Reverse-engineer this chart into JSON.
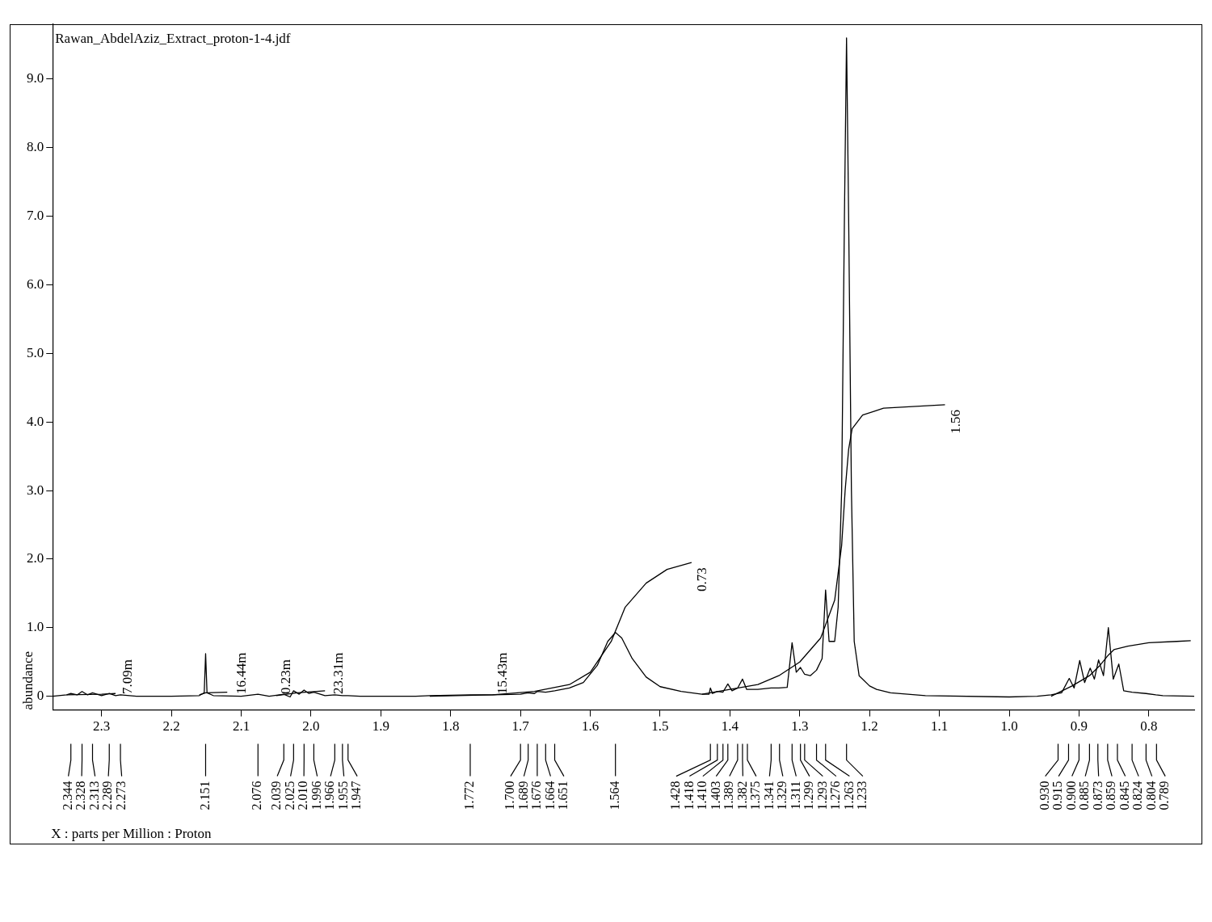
{
  "chart_data": {
    "type": "line",
    "title": "Rawan_AbdelAziz_Extract_proton-1-4.jdf",
    "ylabel": "abundance",
    "xlim": [
      2.37,
      0.735
    ],
    "ylim": [
      -0.2,
      9.8
    ],
    "xticks": [
      2.3,
      2.2,
      2.1,
      {
        "value": 2.0,
        "label": "2.0"
      },
      1.9,
      1.8,
      1.7,
      1.6,
      1.5,
      1.4,
      1.3,
      1.2,
      1.1,
      {
        "value": 1.0,
        "label": "1.0"
      },
      0.9,
      0.8
    ],
    "yticks": [
      0,
      {
        "value": 1,
        "label": "1.0"
      },
      {
        "value": 2,
        "label": "2.0"
      },
      {
        "value": 3,
        "label": "3.0"
      },
      {
        "value": 4,
        "label": "4.0"
      },
      {
        "value": 5,
        "label": "5.0"
      },
      {
        "value": 6,
        "label": "6.0"
      },
      {
        "value": 7,
        "label": "7.0"
      },
      {
        "value": 8,
        "label": "8.0"
      },
      {
        "value": 9,
        "label": "9.0"
      }
    ],
    "grid": false,
    "legend": false,
    "marker": "none",
    "series": [
      {
        "type": "line",
        "color": "#000000",
        "x": [
          2.37,
          2.35,
          2.344,
          2.335,
          2.328,
          2.32,
          2.313,
          2.3,
          2.289,
          2.28,
          2.273,
          2.25,
          2.2,
          2.16,
          2.153,
          2.151,
          2.149,
          2.14,
          2.1,
          2.076,
          2.06,
          2.039,
          2.03,
          2.025,
          2.017,
          2.01,
          2.003,
          1.996,
          1.98,
          1.966,
          1.955,
          1.947,
          1.93,
          1.85,
          1.83,
          1.772,
          1.74,
          1.7,
          1.689,
          1.68,
          1.676,
          1.664,
          1.651,
          1.63,
          1.61,
          1.59,
          1.575,
          1.564,
          1.555,
          1.54,
          1.52,
          1.5,
          1.47,
          1.44,
          1.43,
          1.428,
          1.425,
          1.418,
          1.41,
          1.403,
          1.397,
          1.389,
          1.382,
          1.376,
          1.36,
          1.341,
          1.33,
          1.318,
          1.311,
          1.305,
          1.299,
          1.293,
          1.285,
          1.276,
          1.268,
          1.263,
          1.258,
          1.25,
          1.245,
          1.24,
          1.236,
          1.233,
          1.23,
          1.226,
          1.222,
          1.215,
          1.2,
          1.19,
          1.17,
          1.12,
          1.0,
          0.96,
          0.94,
          0.93,
          0.925,
          0.914,
          0.907,
          0.899,
          0.892,
          0.884,
          0.878,
          0.872,
          0.865,
          0.858,
          0.851,
          0.843,
          0.836,
          0.824,
          0.804,
          0.79,
          0.78,
          0.735
        ],
        "values": [
          0,
          0.02,
          0.04,
          0.02,
          0.07,
          0.02,
          0.05,
          0.01,
          0.04,
          0.01,
          0.02,
          0,
          0,
          0.01,
          0.05,
          0.62,
          0.05,
          0.01,
          0,
          0.03,
          0,
          0.03,
          -0.01,
          0.08,
          0.03,
          0.09,
          0.04,
          0.06,
          0.01,
          0.02,
          0.01,
          0.01,
          0,
          0,
          0.01,
          0.02,
          0.02,
          0.03,
          0.05,
          0.04,
          0.07,
          0.06,
          0.08,
          0.12,
          0.2,
          0.45,
          0.8,
          0.93,
          0.85,
          0.55,
          0.28,
          0.14,
          0.07,
          0.03,
          0.03,
          0.12,
          0.04,
          0.07,
          0.06,
          0.18,
          0.08,
          0.12,
          0.25,
          0.1,
          0.1,
          0.12,
          0.12,
          0.13,
          0.78,
          0.35,
          0.42,
          0.32,
          0.3,
          0.38,
          0.55,
          1.55,
          0.8,
          0.8,
          1.3,
          3.0,
          7.0,
          9.6,
          7.0,
          3.0,
          0.8,
          0.3,
          0.15,
          0.1,
          0.05,
          0.01,
          -0.01,
          0,
          0.02,
          0.04,
          0.05,
          0.26,
          0.12,
          0.52,
          0.2,
          0.41,
          0.25,
          0.53,
          0.3,
          1.0,
          0.25,
          0.47,
          0.08,
          0.06,
          0.04,
          0.02,
          0.01,
          0
        ]
      },
      {
        "type": "line",
        "color": "#000000",
        "x": [
          2.35,
          2.3,
          2.28
        ],
        "values": [
          0.02,
          0.03,
          0.04
        ]
      },
      {
        "type": "line",
        "color": "#000000",
        "x": [
          2.16,
          2.151,
          2.12
        ],
        "values": [
          0.02,
          0.05,
          0.06
        ]
      },
      {
        "type": "line",
        "color": "#000000",
        "x": [
          2.05,
          2.02,
          1.98
        ],
        "values": [
          0.01,
          0.05,
          0.08
        ]
      },
      {
        "type": "line",
        "color": "#000000",
        "x": [
          1.83,
          1.74,
          1.68,
          1.63,
          1.6,
          1.57,
          1.55,
          1.52,
          1.49,
          1.455
        ],
        "values": [
          0,
          0.02,
          0.07,
          0.17,
          0.35,
          0.8,
          1.3,
          1.65,
          1.85,
          1.95
        ]
      },
      {
        "type": "line",
        "color": "#000000",
        "x": [
          1.44,
          1.4,
          1.36,
          1.33,
          1.3,
          1.27,
          1.25,
          1.24,
          1.235,
          1.23,
          1.225,
          1.21,
          1.18,
          1.092
        ],
        "values": [
          0.03,
          0.1,
          0.17,
          0.3,
          0.5,
          0.85,
          1.4,
          2.2,
          3.0,
          3.6,
          3.9,
          4.1,
          4.2,
          4.25
        ]
      },
      {
        "type": "line",
        "color": "#000000",
        "x": [
          0.94,
          0.91,
          0.885,
          0.87,
          0.858,
          0.85,
          0.83,
          0.8,
          0.76,
          0.74
        ],
        "values": [
          0,
          0.15,
          0.3,
          0.45,
          0.6,
          0.68,
          0.73,
          0.78,
          0.8,
          0.81
        ]
      }
    ],
    "annotations": [
      {
        "text": "7.09m",
        "x": 2.262,
        "y": 0.03
      },
      {
        "text": "16.44m",
        "x": 2.099,
        "y": 0.03
      },
      {
        "text": "0.23m",
        "x": 2.035,
        "y": 0.03
      },
      {
        "text": "23.31m",
        "x": 1.96,
        "y": 0.03
      },
      {
        "text": "15.43m",
        "x": 1.725,
        "y": 0.03
      },
      {
        "text": "0.73",
        "x": 1.455,
        "y": 1.95
      },
      {
        "text": "1.56",
        "x": 1.092,
        "y": 4.25
      },
      "X : parts per Million : Proton",
      {
        "text": "2.344",
        "x": 2.344
      },
      {
        "text": "2.328",
        "x": 2.328
      },
      {
        "text": "2.313",
        "x": 2.313
      },
      {
        "text": "2.289",
        "x": 2.289
      },
      {
        "text": "2.273",
        "x": 2.273
      },
      {
        "text": "2.151",
        "x": 2.151
      },
      {
        "text": "2.076",
        "x": 2.076
      },
      {
        "text": "2.039",
        "x": 2.039
      },
      {
        "text": "2.025",
        "x": 2.025
      },
      {
        "text": "2.010",
        "x": 2.01
      },
      {
        "text": "1.996",
        "x": 1.996
      },
      {
        "text": "1.966",
        "x": 1.966
      },
      {
        "text": "1.955",
        "x": 1.955
      },
      {
        "text": "1.947",
        "x": 1.947
      },
      {
        "text": "1.772",
        "x": 1.772
      },
      {
        "text": "1.700",
        "x": 1.7
      },
      {
        "text": "1.689",
        "x": 1.689
      },
      {
        "text": "1.676",
        "x": 1.676
      },
      {
        "text": "1.664",
        "x": 1.664
      },
      {
        "text": "1.651",
        "x": 1.651
      },
      {
        "text": "1.564",
        "x": 1.564
      },
      {
        "text": "1.428",
        "x": 1.428
      },
      {
        "text": "1.418",
        "x": 1.418
      },
      {
        "text": "1.410",
        "x": 1.41
      },
      {
        "text": "1.403",
        "x": 1.403
      },
      {
        "text": "1.389",
        "x": 1.389
      },
      {
        "text": "1.382",
        "x": 1.382
      },
      {
        "text": "1.375",
        "x": 1.375
      },
      {
        "text": "1.341",
        "x": 1.341
      },
      {
        "text": "1.329",
        "x": 1.329
      },
      {
        "text": "1.311",
        "x": 1.311
      },
      {
        "text": "1.299",
        "x": 1.299
      },
      {
        "text": "1.293",
        "x": 1.293
      },
      {
        "text": "1.276",
        "x": 1.276
      },
      {
        "text": "1.263",
        "x": 1.263
      },
      {
        "text": "1.233",
        "x": 1.233
      },
      {
        "text": "0.930",
        "x": 0.93
      },
      {
        "text": "0.915",
        "x": 0.915
      },
      {
        "text": "0.900",
        "x": 0.9
      },
      {
        "text": "0.885",
        "x": 0.885
      },
      {
        "text": "0.873",
        "x": 0.873
      },
      {
        "text": "0.859",
        "x": 0.859
      },
      {
        "text": "0.845",
        "x": 0.845
      },
      {
        "text": "0.824",
        "x": 0.824
      },
      {
        "text": "0.804",
        "x": 0.804
      },
      {
        "text": "0.789",
        "x": 0.789
      }
    ]
  }
}
